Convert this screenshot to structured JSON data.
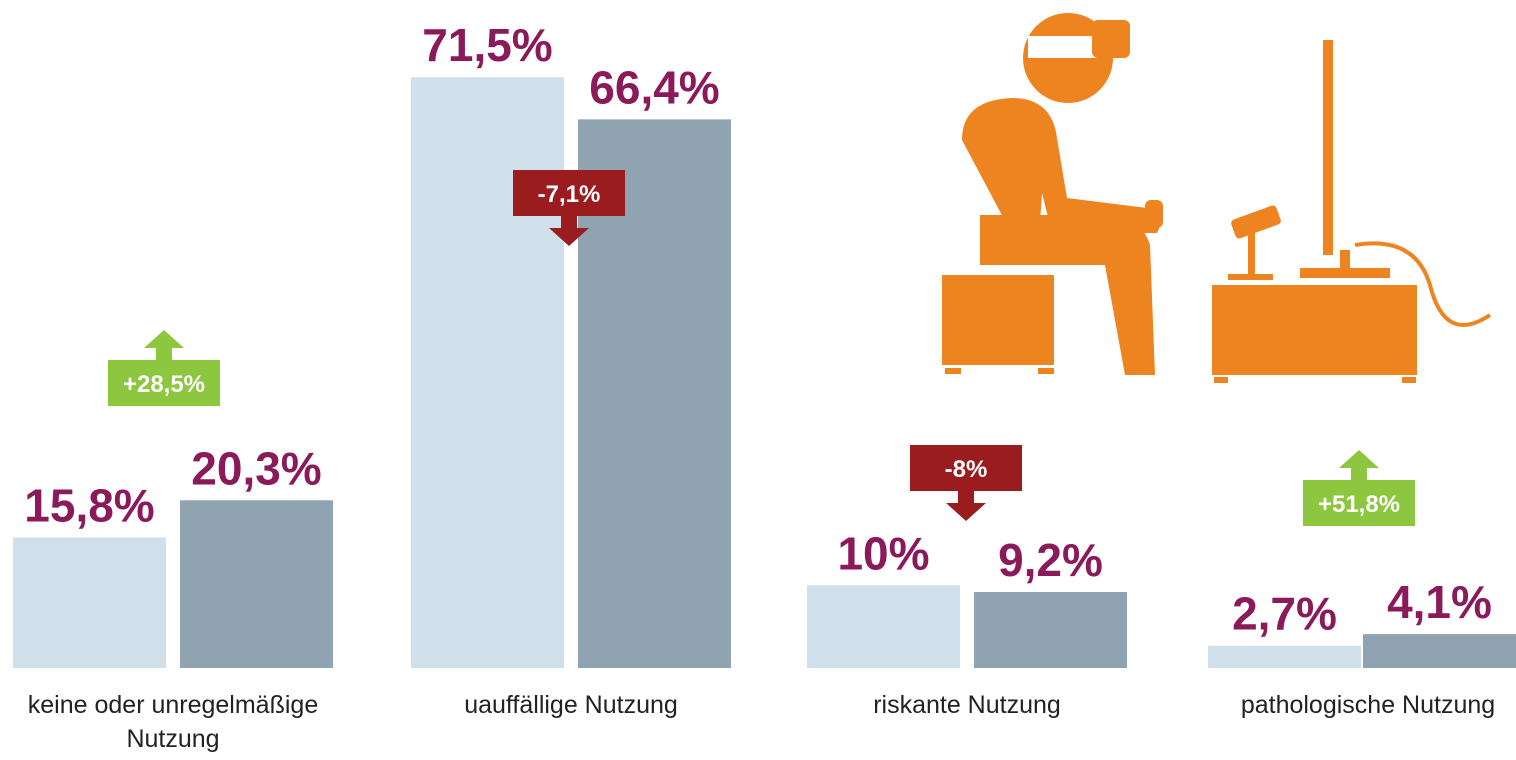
{
  "chart_data": {
    "type": "bar",
    "categories": [
      "keine oder unregelmäßige Nutzung",
      "uauffällige Nutzung",
      "riskante Nutzung",
      "pathologische Nutzung"
    ],
    "series": [
      {
        "color": "#cfe0ea",
        "values": [
          15.8,
          71.5,
          10,
          2.7
        ],
        "value_labels": [
          "15,8%",
          "71,5%",
          "10%",
          "2,7%"
        ]
      },
      {
        "color": "#8fa3b0",
        "values": [
          20.3,
          66.4,
          9.2,
          4.1
        ],
        "value_labels": [
          "20,3%",
          "66,4%",
          "9,2%",
          "4,1%"
        ]
      }
    ],
    "annotations": [
      "+28,5%",
      "-7,1%",
      "-8%",
      "+51,8%"
    ],
    "label_color": "#8b1a5a",
    "ylim": [
      0,
      80
    ]
  }
}
